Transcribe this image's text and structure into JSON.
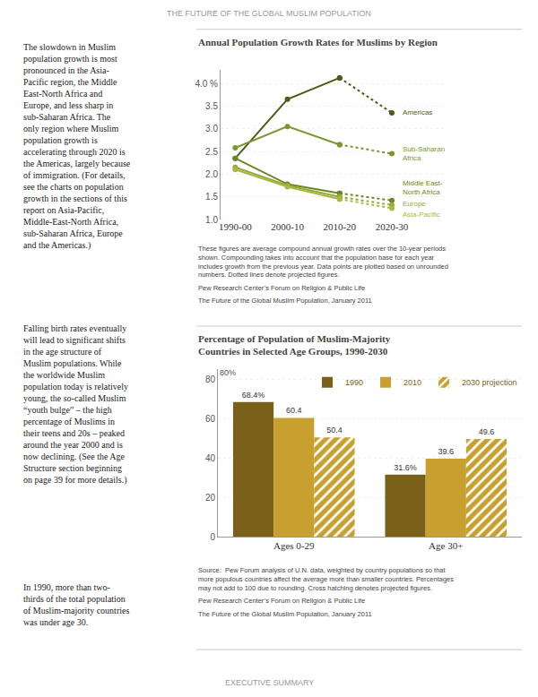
{
  "title": "THE FUTURE OF THE GLOBAL MUSLIM POPULATION",
  "annotations": [
    {
      "text": "EXECUTIVE SUMMARY"
    },
    {
      "text": "The slowdown in Muslim\npopulation growth is most\npronounced in the Asia-\nPacific region, the Middle\nEast-North Africa and\nEurope, and less sharp in\nsub-Saharan Africa. The\nonly region where Muslim\npopulation growth is\naccelerating through 2020 is\nthe Americas, largely because\nof immigration. (For details,\nsee the charts on population\ngrowth in the sections of this\nreport on Asia-Pacific,\nMiddle-East-North Africa,\nsub-Saharan Africa, Europe\nand the Americas.)"
    },
    {
      "text": "Falling birth rates eventually\nwill lead to significant shifts\nin the age structure of\nMuslim populations. While\nthe worldwide Muslim\npopulation today is relatively\nyoung, the so-called Muslim\n“youth bulge” – the high\npercentage of Muslims in\ntheir teens and 20s – peaked\naround the year 2000 and is\nnow declining. (See the Age\nStructure section beginning\non page 39 for more details.)"
    },
    {
      "text": "In 1990, more than two-\nthirds of the total population\nof Muslim-majority countries\nwas under age 30."
    }
  ],
  "chart_data": [
    {
      "type": "line",
      "title": "Annual Population Growth Rates for Muslims by Region",
      "categories": [
        "1990-00",
        "2000-10",
        "2010-20",
        "2020-30"
      ],
      "ylim": [
        1.0,
        4.3
      ],
      "yticks": [
        {
          "value": 1.0,
          "label": "1.0"
        },
        {
          "value": 1.5,
          "label": "1.5"
        },
        {
          "value": 2.0,
          "label": "2.0"
        },
        {
          "value": 2.5,
          "label": "2.5"
        },
        {
          "value": 3.0,
          "label": "3.0"
        },
        {
          "value": 3.5,
          "label": "3.5"
        },
        {
          "value": 4.0,
          "label": "4.0 %"
        }
      ],
      "grid": true,
      "series": [
        {
          "name": "Americas",
          "color": "#4a5e18",
          "values": [
            2.35,
            3.65,
            4.12,
            3.35
          ],
          "dotted_from": "2010-20"
        },
        {
          "name": "Sub-Saharan\nAfrica",
          "color": "#7a9830",
          "values": [
            2.58,
            3.05,
            2.65,
            2.45
          ],
          "dotted_from": "2010-20"
        },
        {
          "name": "Middle East-\nNorth Africa",
          "color": "#6a8828",
          "values": [
            2.35,
            1.78,
            1.58,
            1.42
          ],
          "dotted_from": "2010-20"
        },
        {
          "name": "Europe",
          "color": "#96a840",
          "values": [
            2.15,
            1.75,
            1.5,
            1.32
          ],
          "dotted_from": "2010-20"
        },
        {
          "name": "Asia-Pacific",
          "color": "#aab840",
          "values": [
            2.1,
            1.72,
            1.45,
            1.25
          ],
          "dotted_from": "2010-20"
        }
      ],
      "annotations": [
        {
          "text": "These figures are average compound annual growth rates over the 10-year periods\nshown. Compounding takes into account that the population base for each year\nincludes growth from the previous year. Data points are plotted based on unrounded\nnumbers. Dotted lines denote projected figures."
        },
        {
          "text": "Pew Research Center’s Forum on Religion & Public Life"
        },
        {
          "text": "The Future of the Global Muslim Population, January 2011"
        }
      ]
    },
    {
      "type": "bar",
      "title": "Percentage of Population of Muslim-Majority\nCountries in Selected Age Groups, 1990-2030",
      "categories": [
        "Ages 0-29",
        "Age 30+"
      ],
      "ylim": [
        0,
        85
      ],
      "yticks": [
        0,
        20,
        40,
        60,
        80
      ],
      "grid": true,
      "legend": "upper right",
      "data_labels": true,
      "series": [
        {
          "name": "1990",
          "color": "#7a6018",
          "values": [
            68.4,
            31.6
          ],
          "value_labels": [
            "68.4%",
            "31.6%"
          ]
        },
        {
          "name": "2010",
          "color": "#c8a030",
          "values": [
            60.4,
            39.6
          ],
          "value_labels": [
            "60.4",
            "39.6"
          ]
        },
        {
          "name": "2030 projection",
          "color": "#c8a030",
          "marker": "hatched",
          "values": [
            50.4,
            49.6
          ],
          "value_labels": [
            "50.4",
            "49.6"
          ]
        }
      ],
      "annotations": [
        {
          "text": "80%",
          "y": 80
        },
        {
          "text": "Source:  Pew Forum analysis of U.N. data, weighted by country populations so that\nmore populous countries affect the average more than smaller countries. Percentages\nmay not add to 100 due to rounding. Cross hatching denotes projected figures."
        },
        {
          "text": "Pew Research Center’s Forum on Religion & Public Life"
        },
        {
          "text": "The Future of the Global Muslim Population, January 2011"
        }
      ]
    }
  ]
}
